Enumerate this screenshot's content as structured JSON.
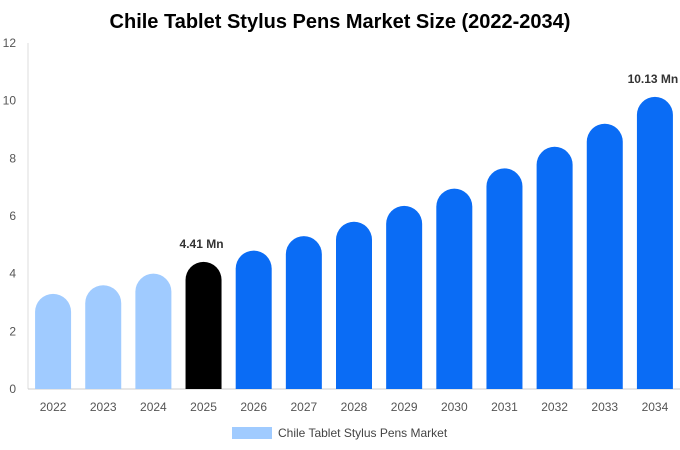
{
  "chart_data": {
    "type": "bar",
    "title": "Chile Tablet Stylus Pens Market Size (2022-2034)",
    "xlabel": "",
    "ylabel": "",
    "categories": [
      "2022",
      "2023",
      "2024",
      "2025",
      "2026",
      "2027",
      "2028",
      "2029",
      "2030",
      "2031",
      "2032",
      "2033",
      "2034"
    ],
    "series": [
      {
        "name": "Chile Tablet Stylus Pens Market",
        "values": [
          3.3,
          3.6,
          4.0,
          4.41,
          4.8,
          5.3,
          5.8,
          6.35,
          6.95,
          7.65,
          8.4,
          9.2,
          10.13
        ]
      }
    ],
    "ylim": [
      0,
      12
    ],
    "yticks": [
      0,
      2,
      4,
      6,
      8,
      10,
      12
    ],
    "data_labels": [
      {
        "index": 3,
        "text": "4.41 Mn"
      },
      {
        "index": 12,
        "text": "10.13 Mn"
      }
    ],
    "bar_colors": [
      "#a0cbff",
      "#a0cbff",
      "#a0cbff",
      "#000000",
      "#0a6cf5",
      "#0a6cf5",
      "#0a6cf5",
      "#0a6cf5",
      "#0a6cf5",
      "#0a6cf5",
      "#0a6cf5",
      "#0a6cf5",
      "#0a6cf5"
    ],
    "legend_color": "#a0cbff",
    "grid": false,
    "legend_position": "bottom-center"
  }
}
